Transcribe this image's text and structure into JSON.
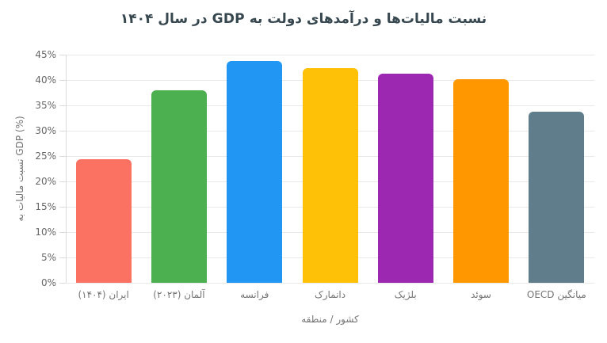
{
  "chart_data": {
    "type": "bar",
    "title": "نسبت مالیات‌ها و درآمدهای دولت به GDP در سال ۱۴۰۴",
    "xlabel": "کشور / منطقه",
    "ylabel": "نسبت مالیات به GDP (%)",
    "categories": [
      "ایران (۱۴۰۴)",
      "آلمان (۲۰۲۳)",
      "فرانسه",
      "دانمارک",
      "بلژیک",
      "سوئد",
      "میانگین OECD"
    ],
    "values": [
      24.4,
      38.0,
      43.7,
      42.4,
      41.2,
      40.2,
      33.8
    ],
    "bar_colors": [
      "#FB7262",
      "#4CAF50",
      "#2196F3",
      "#FFC107",
      "#9C27B0",
      "#FF9800",
      "#607D8B"
    ],
    "ylim": [
      0,
      45
    ],
    "ytick_step": 5,
    "ytick_labels": [
      "0%",
      "5%",
      "10%",
      "15%",
      "20%",
      "25%",
      "30%",
      "35%",
      "40%",
      "45%"
    ],
    "grid": true,
    "legend": "none"
  },
  "colors": {
    "background": "#FFFFFF",
    "title_text": "#37474F",
    "axis_text": "#757575",
    "tick_text": "#666666",
    "gridline": "#E9E9E9",
    "axis_line": "#DCDCDC"
  }
}
